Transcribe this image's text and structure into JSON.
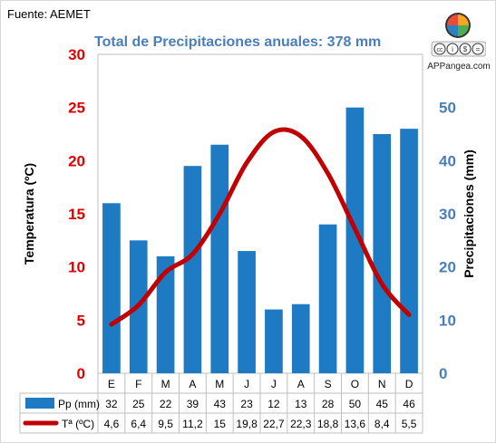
{
  "source": "Fuente: AEMET",
  "title": "Total de Precipitaciones anuales: 378 mm",
  "logo": {
    "text": "APPangea.com",
    "badges": [
      "cc",
      "i",
      "$",
      "="
    ],
    "colors": [
      "#e94b3c",
      "#f5a623",
      "#4caf50",
      "#2f80c1"
    ]
  },
  "chart_data": {
    "type": "bar+line",
    "categories": [
      "E",
      "F",
      "M",
      "A",
      "M",
      "J",
      "J",
      "A",
      "S",
      "O",
      "N",
      "D"
    ],
    "series": [
      {
        "name": "Pp (mm)",
        "type": "bar",
        "axis": "right",
        "color": "#1f7ac4",
        "values": [
          32,
          25,
          22,
          39,
          43,
          23,
          12,
          13,
          28,
          50,
          45,
          46
        ]
      },
      {
        "name": "Tª (ºC)",
        "type": "line",
        "axis": "left",
        "color": "#c00000",
        "values": [
          4.6,
          6.4,
          9.5,
          11.2,
          15,
          19.8,
          22.7,
          22.3,
          18.8,
          13.6,
          8.4,
          5.5
        ]
      }
    ],
    "table_values": {
      "pp": [
        "32",
        "25",
        "22",
        "39",
        "43",
        "23",
        "12",
        "13",
        "28",
        "50",
        "45",
        "46"
      ],
      "temp": [
        "4,6",
        "6,4",
        "9,5",
        "11,2",
        "15",
        "19,8",
        "22,7",
        "22,3",
        "18,8",
        "13,6",
        "8,4",
        "5,5"
      ]
    },
    "y_left": {
      "label": "Temperatura (ºC)",
      "range": [
        0,
        30
      ],
      "ticks": [
        "0",
        "5",
        "10",
        "15",
        "20",
        "25",
        "30"
      ],
      "color": "#e00000"
    },
    "y_right": {
      "label": "Precipitaciones (mm)",
      "range": [
        0,
        60
      ],
      "ticks": [
        "0",
        "10",
        "20",
        "30",
        "40",
        "50"
      ],
      "color": "#4a7ebb"
    },
    "grid": false,
    "legend": "bottom-table"
  }
}
